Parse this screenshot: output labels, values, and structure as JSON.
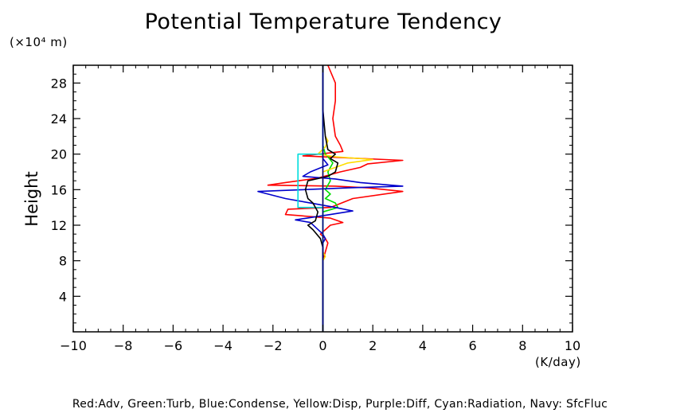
{
  "chart_data": {
    "type": "line",
    "title": "Potential Temperature Tendency",
    "yunit": "(×10⁴ m)",
    "ylabel": "Height",
    "xunit": "(K/day)",
    "xlim": [
      -10,
      10
    ],
    "ylim": [
      0,
      30
    ],
    "xticks": [
      -10,
      -8,
      -6,
      -4,
      -2,
      0,
      2,
      4,
      6,
      8,
      10
    ],
    "xtick_labels": [
      "−10",
      "−8",
      "−6",
      "−4",
      "−2",
      "0",
      "2",
      "4",
      "6",
      "8",
      "10"
    ],
    "yticks": [
      4,
      8,
      12,
      16,
      20,
      24,
      28
    ],
    "ytick_labels": [
      "4",
      "8",
      "12",
      "16",
      "20",
      "24",
      "28"
    ],
    "legend_text": "Red:Adv, Green:Turb, Blue:Condense, Yellow:Disp, Purple:Diff, Cyan:Radiation, Navy: SfcFluc",
    "series": [
      {
        "color": "#ff0000",
        "points": [
          [
            0,
            0
          ],
          [
            0,
            8
          ],
          [
            0.1,
            9
          ],
          [
            0.2,
            10
          ],
          [
            0.1,
            10.5
          ],
          [
            -0.1,
            11
          ],
          [
            0.3,
            12
          ],
          [
            0.8,
            12.3
          ],
          [
            0.3,
            12.8
          ],
          [
            -1.5,
            13.2
          ],
          [
            -1.4,
            13.8
          ],
          [
            0.3,
            14
          ],
          [
            1.2,
            15
          ],
          [
            3.2,
            15.8
          ],
          [
            1.8,
            16.2
          ],
          [
            0.5,
            16.4
          ],
          [
            -2.2,
            16.5
          ],
          [
            -1.5,
            16.8
          ],
          [
            -0.2,
            17.3
          ],
          [
            0.7,
            18
          ],
          [
            1.5,
            18.5
          ],
          [
            1.8,
            18.9
          ],
          [
            3.2,
            19.3
          ],
          [
            -0.8,
            19.8
          ],
          [
            0.8,
            20.3
          ],
          [
            0.7,
            21
          ],
          [
            0.5,
            22
          ],
          [
            0.4,
            24
          ],
          [
            0.5,
            26
          ],
          [
            0.5,
            28
          ],
          [
            0.2,
            30
          ]
        ]
      },
      {
        "color": "#00dd00",
        "points": [
          [
            0,
            0
          ],
          [
            0,
            13.5
          ],
          [
            0.6,
            14
          ],
          [
            0.5,
            14.5
          ],
          [
            0.1,
            15
          ],
          [
            0.3,
            15.5
          ],
          [
            0.1,
            16
          ],
          [
            0.3,
            17
          ],
          [
            0.2,
            18
          ],
          [
            0.4,
            19
          ],
          [
            0.2,
            19.7
          ],
          [
            0.1,
            20
          ],
          [
            0,
            21
          ]
        ]
      },
      {
        "color": "#0000cc",
        "points": [
          [
            0,
            0
          ],
          [
            0,
            10
          ],
          [
            0.1,
            10.5
          ],
          [
            0,
            11
          ],
          [
            -0.5,
            12.3
          ],
          [
            -1.1,
            12.6
          ],
          [
            -0.4,
            12.9
          ],
          [
            0.3,
            13.2
          ],
          [
            1.2,
            13.6
          ],
          [
            0.5,
            14
          ],
          [
            -0.5,
            14.5
          ],
          [
            -1.5,
            15
          ],
          [
            -2.6,
            15.8
          ],
          [
            1,
            16.2
          ],
          [
            3.2,
            16.4
          ],
          [
            1.5,
            16.8
          ],
          [
            0.5,
            17.2
          ],
          [
            -0.8,
            17.5
          ],
          [
            -0.5,
            18
          ],
          [
            0.2,
            18.8
          ],
          [
            0,
            19.5
          ],
          [
            0,
            30
          ]
        ]
      },
      {
        "color": "#ffdd00",
        "points": [
          [
            0,
            8
          ],
          [
            0.1,
            8.5
          ],
          [
            0,
            9
          ],
          [
            0,
            18
          ],
          [
            1,
            19
          ],
          [
            2,
            19.4
          ],
          [
            0.5,
            19.7
          ],
          [
            -0.2,
            20
          ],
          [
            0.1,
            20.8
          ],
          [
            0.2,
            21.5
          ],
          [
            0.1,
            22
          ]
        ]
      },
      {
        "color": "#00dddd",
        "points": [
          [
            0,
            0
          ],
          [
            0,
            14
          ],
          [
            -1.0,
            14
          ],
          [
            -1.0,
            20
          ],
          [
            0,
            20
          ],
          [
            0,
            30
          ]
        ]
      },
      {
        "color": "#000000",
        "points": [
          [
            0,
            0
          ],
          [
            0,
            9.5
          ],
          [
            -0.1,
            10.5
          ],
          [
            -0.4,
            11.5
          ],
          [
            -0.6,
            12
          ],
          [
            -0.3,
            12.5
          ],
          [
            -0.2,
            13.5
          ],
          [
            -0.4,
            14.5
          ],
          [
            -0.6,
            15
          ],
          [
            -0.7,
            16
          ],
          [
            -0.6,
            17
          ],
          [
            0.2,
            17.5
          ],
          [
            0.5,
            18
          ],
          [
            0.6,
            19
          ],
          [
            0.3,
            19.5
          ],
          [
            0.5,
            20
          ],
          [
            0.2,
            20.5
          ],
          [
            0.1,
            22
          ],
          [
            0,
            25
          ],
          [
            0,
            30
          ]
        ]
      },
      {
        "color": "#000080",
        "points": [
          [
            0,
            0
          ],
          [
            0,
            30
          ]
        ]
      }
    ]
  }
}
